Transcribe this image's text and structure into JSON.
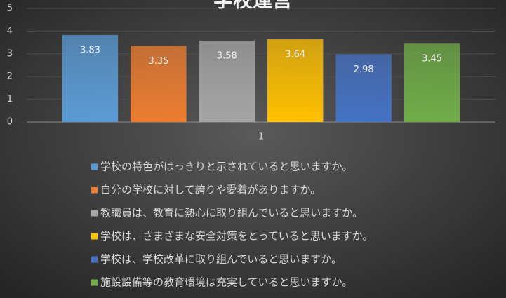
{
  "chart_data": {
    "type": "bar",
    "title": "学校運営",
    "categories": [
      "1"
    ],
    "series": [
      {
        "name": "学校の特色がはっきりと示されていると思いますか。",
        "color": "#5b9bd5",
        "values": [
          3.83
        ]
      },
      {
        "name": "自分の学校に対して誇りや愛着がありますか。",
        "color": "#ed7d31",
        "values": [
          3.35
        ]
      },
      {
        "name": "教職員は、教育に熱心に取り組んでいると思いますか。",
        "color": "#a5a5a5",
        "values": [
          3.58
        ]
      },
      {
        "name": "学校は、さまざまな安全対策をとっていると思いますか。",
        "color": "#ffc000",
        "values": [
          3.64
        ]
      },
      {
        "name": "学校は、学校改革に取り組んでいると思いますか。",
        "color": "#4472c4",
        "values": [
          2.98
        ]
      },
      {
        "name": "施設設備等の教育環境は充実していると思いますか。",
        "color": "#70ad47",
        "values": [
          3.45
        ]
      }
    ],
    "ylim": [
      0,
      5
    ],
    "yticks": [
      0,
      1,
      2,
      3,
      4,
      5
    ],
    "grid": true,
    "legend": "bottom",
    "data_labels": true
  }
}
